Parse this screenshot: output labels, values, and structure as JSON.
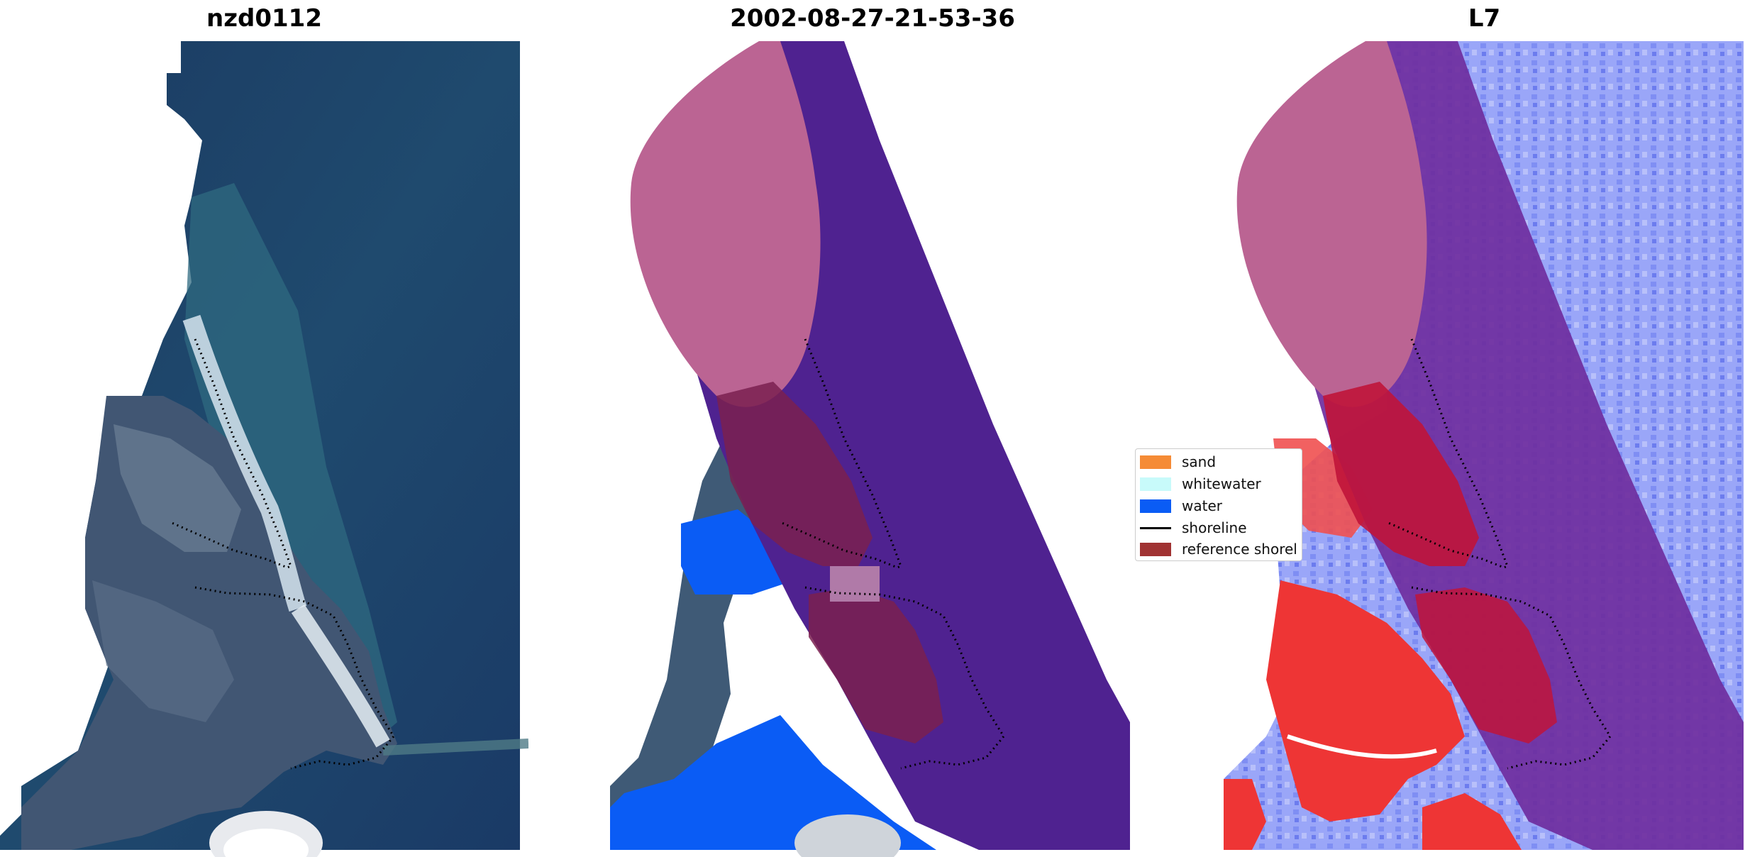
{
  "panels": [
    {
      "title": "nzd0112"
    },
    {
      "title": "2002-08-27-21-53-36"
    },
    {
      "title": "L7"
    }
  ],
  "legend": {
    "items": [
      {
        "label": "sand",
        "color": "#f58b36",
        "kind": "patch"
      },
      {
        "label": "whitewater",
        "color": "#c8fafa",
        "kind": "patch"
      },
      {
        "label": "water",
        "color": "#0a5cf5",
        "kind": "patch"
      },
      {
        "label": "shoreline",
        "color": "#000000",
        "kind": "line"
      },
      {
        "label": "reference shorel",
        "color": "#a03232",
        "kind": "patch"
      }
    ]
  },
  "colors": {
    "sea_satellite": "#1d3d66",
    "land_satellite": "#4a5f7a",
    "surf": "#d8e6f0",
    "classified_water": "#0a5cf5",
    "buffer_purple": "#4f2290",
    "pink_mask": "#bb6493",
    "sand_overlay": "#7a2050",
    "index_blue": "#9aa6f8",
    "index_red": "#ee3535"
  }
}
